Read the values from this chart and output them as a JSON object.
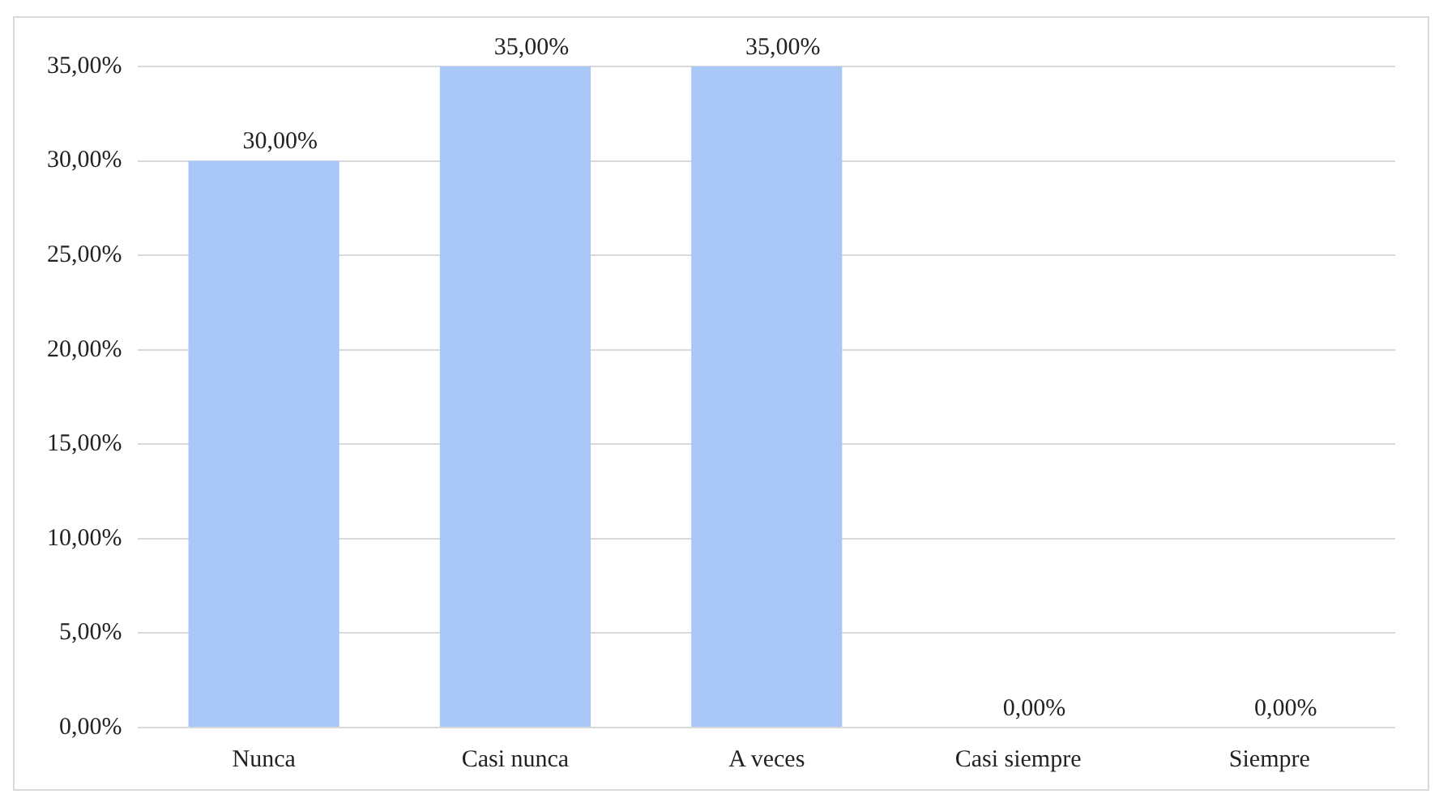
{
  "chart_data": {
    "type": "bar",
    "categories": [
      "Nunca",
      "Casi nunca",
      "A veces",
      "Casi siempre",
      "Siempre"
    ],
    "values": [
      30,
      35,
      35,
      0,
      0
    ],
    "value_labels": [
      "30,00%",
      "35,00%",
      "35,00%",
      "0,00%",
      "0,00%"
    ],
    "color": "#a9c8f8",
    "ylim": [
      0,
      35
    ],
    "yticks": [
      {
        "value": 0,
        "label": "0,00%"
      },
      {
        "value": 5,
        "label": "5,00%"
      },
      {
        "value": 10,
        "label": "10,00%"
      },
      {
        "value": 15,
        "label": "15,00%"
      },
      {
        "value": 20,
        "label": "20,00%"
      },
      {
        "value": 25,
        "label": "25,00%"
      },
      {
        "value": 30,
        "label": "30,00%"
      },
      {
        "value": 35,
        "label": "35,00%"
      }
    ],
    "grid": "y",
    "legend": false
  }
}
